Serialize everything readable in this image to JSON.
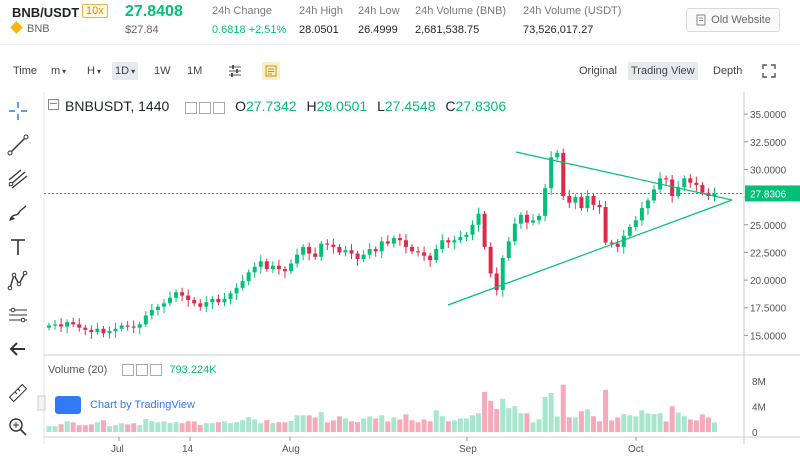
{
  "header": {
    "pair": "BNB/USDT",
    "leverage": "10x",
    "coin": "BNB",
    "price": "27.8408",
    "price_usd": "$27.84",
    "stats": [
      {
        "label": "24h Change",
        "value": "0.6818 +2.51%"
      },
      {
        "label": "24h High",
        "value": "28.0501"
      },
      {
        "label": "24h Low",
        "value": "26.4999"
      },
      {
        "label": "24h Volume (BNB)",
        "value": "2,681,538.75"
      },
      {
        "label": "24h Volume (USDT)",
        "value": "73,526,017.27"
      }
    ],
    "old_website": "Old Website"
  },
  "toolbar": {
    "time": "Time",
    "m": "m",
    "h": "H",
    "d1": "1D",
    "w1": "1W",
    "mo1": "1M",
    "original": "Original",
    "tradingview": "Trading View",
    "depth": "Depth"
  },
  "legend": {
    "symbol": "BNBUSDT, 1440",
    "o_label": "O",
    "o": "27.7342",
    "h_label": "H",
    "h": "28.0501",
    "l_label": "L",
    "l": "27.4548",
    "c_label": "C",
    "c": "27.8306"
  },
  "volume_legend": {
    "label": "Volume (20)",
    "value": "793.224K"
  },
  "tv_logo": "Chart by TradingView",
  "colors": {
    "up": "#02c076",
    "down": "#e0294a",
    "trend": "#02c076",
    "vol_up": "#a8e6cf",
    "vol_down": "#f6a9b8"
  },
  "chart_data": {
    "type": "candlestick",
    "price_axis": {
      "ticks": [
        "35.0000",
        "32.5000",
        "30.0000",
        "27.5000",
        "25.0000",
        "22.5000",
        "20.0000",
        "17.5000",
        "15.0000"
      ],
      "range": [
        13.5,
        37.0
      ]
    },
    "last_price_label": "27.8306",
    "volume_axis": {
      "ticks": [
        "8M",
        "4M",
        "0"
      ],
      "range": [
        0,
        11
      ]
    },
    "x_labels": [
      "Jul",
      "14",
      "Aug",
      "Sep",
      "Oct"
    ],
    "closes": [
      15.9,
      16.0,
      15.8,
      16.2,
      16.0,
      15.7,
      15.5,
      15.3,
      15.6,
      15.2,
      15.4,
      15.6,
      15.9,
      15.8,
      15.7,
      16.0,
      16.8,
      17.3,
      17.6,
      17.9,
      18.4,
      18.9,
      18.6,
      18.2,
      17.9,
      17.6,
      18.0,
      18.3,
      18.0,
      18.3,
      18.8,
      19.3,
      19.9,
      20.7,
      21.2,
      21.7,
      21.0,
      21.3,
      21.0,
      20.8,
      21.5,
      22.3,
      23.0,
      22.4,
      22.1,
      23.3,
      23.2,
      23.0,
      22.5,
      22.7,
      22.4,
      21.9,
      22.3,
      22.8,
      22.6,
      23.5,
      23.3,
      23.8,
      23.6,
      23.0,
      22.6,
      22.5,
      22.2,
      21.8,
      22.8,
      23.6,
      23.4,
      23.6,
      23.9,
      24.1,
      25.0,
      26.0,
      23.0,
      20.6,
      19.1,
      22.0,
      23.5,
      25.1,
      25.9,
      25.2,
      25.4,
      25.8,
      28.3,
      31.1,
      31.5,
      27.6,
      27.0,
      27.5,
      26.5,
      27.6,
      26.8,
      26.6,
      23.4,
      23.3,
      23.0,
      24.0,
      24.8,
      25.4,
      26.5,
      27.2,
      28.2,
      29.2,
      29.1,
      27.6,
      28.4,
      29.2,
      28.8,
      28.6,
      27.9,
      27.6,
      27.8
    ]
  }
}
